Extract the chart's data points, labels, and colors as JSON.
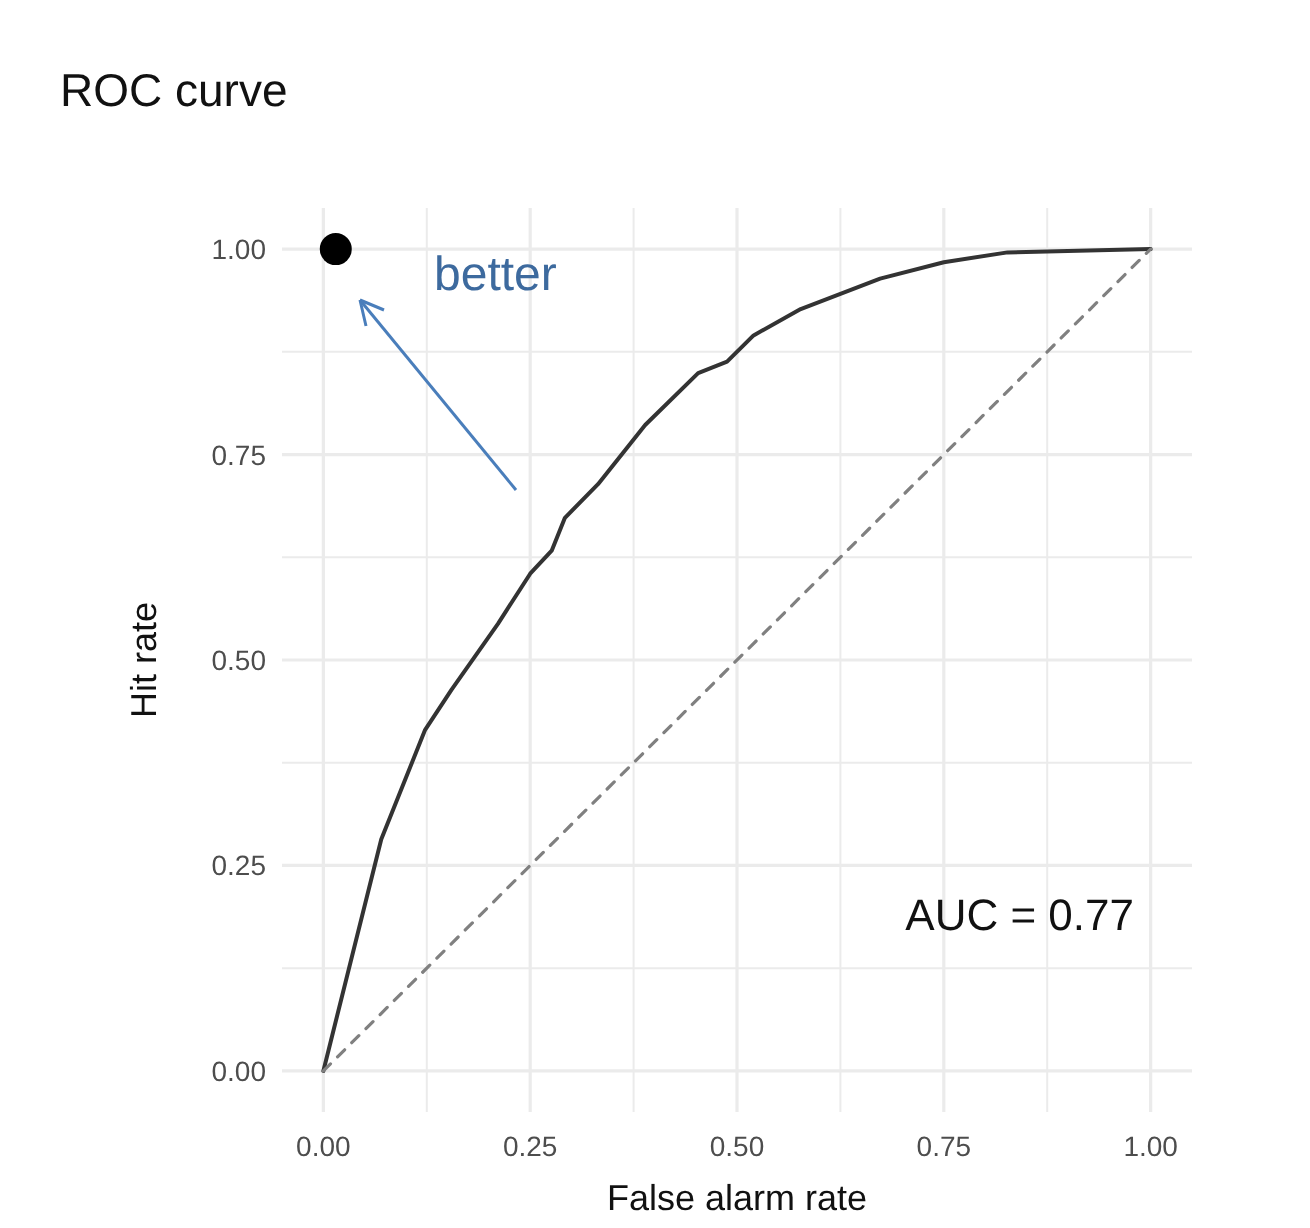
{
  "chart_data": {
    "type": "line",
    "title": "ROC curve",
    "xlabel": "False alarm rate",
    "ylabel": "Hit rate",
    "xlim": [
      -0.05,
      1.05
    ],
    "ylim": [
      -0.05,
      1.05
    ],
    "xticks": [
      {
        "value": 0,
        "label": "0.00"
      },
      {
        "value": 0.125,
        "label": null
      },
      {
        "value": 0.25,
        "label": "0.25"
      },
      {
        "value": 0.375,
        "label": null
      },
      {
        "value": 0.5,
        "label": "0.50"
      },
      {
        "value": 0.625,
        "label": null
      },
      {
        "value": 0.75,
        "label": "0.75"
      },
      {
        "value": 0.875,
        "label": null
      },
      {
        "value": 1,
        "label": "1.00"
      }
    ],
    "yticks": [
      {
        "value": 0,
        "label": "0.00"
      },
      {
        "value": 0.125,
        "label": null
      },
      {
        "value": 0.25,
        "label": "0.25"
      },
      {
        "value": 0.375,
        "label": null
      },
      {
        "value": 0.5,
        "label": "0.50"
      },
      {
        "value": 0.625,
        "label": null
      },
      {
        "value": 0.75,
        "label": "0.75"
      },
      {
        "value": 0.875,
        "label": null
      },
      {
        "value": 1,
        "label": "1.00"
      }
    ],
    "grid": true,
    "series": [
      {
        "color": "#333333",
        "line_style": "solid",
        "x": [
          0,
          0.07,
          0.123,
          0.155,
          0.211,
          0.25,
          0.276,
          0.292,
          0.332,
          0.389,
          0.453,
          0.488,
          0.52,
          0.577,
          0.673,
          0.75,
          0.827,
          1
        ],
        "values": [
          0,
          0.282,
          0.415,
          0.464,
          0.544,
          0.605,
          0.633,
          0.673,
          0.714,
          0.786,
          0.849,
          0.863,
          0.895,
          0.927,
          0.964,
          0.984,
          0.996,
          1
        ]
      },
      {
        "color": "#808080",
        "line_style": "dashed",
        "x": [
          0,
          1
        ],
        "values": [
          0,
          1
        ]
      },
      {
        "type": "scatter",
        "color": "#000000",
        "marker": "circle",
        "x": [
          0.015
        ],
        "values": [
          1
        ]
      }
    ],
    "annotations": [
      "better",
      "AUC = 0.77"
    ]
  }
}
